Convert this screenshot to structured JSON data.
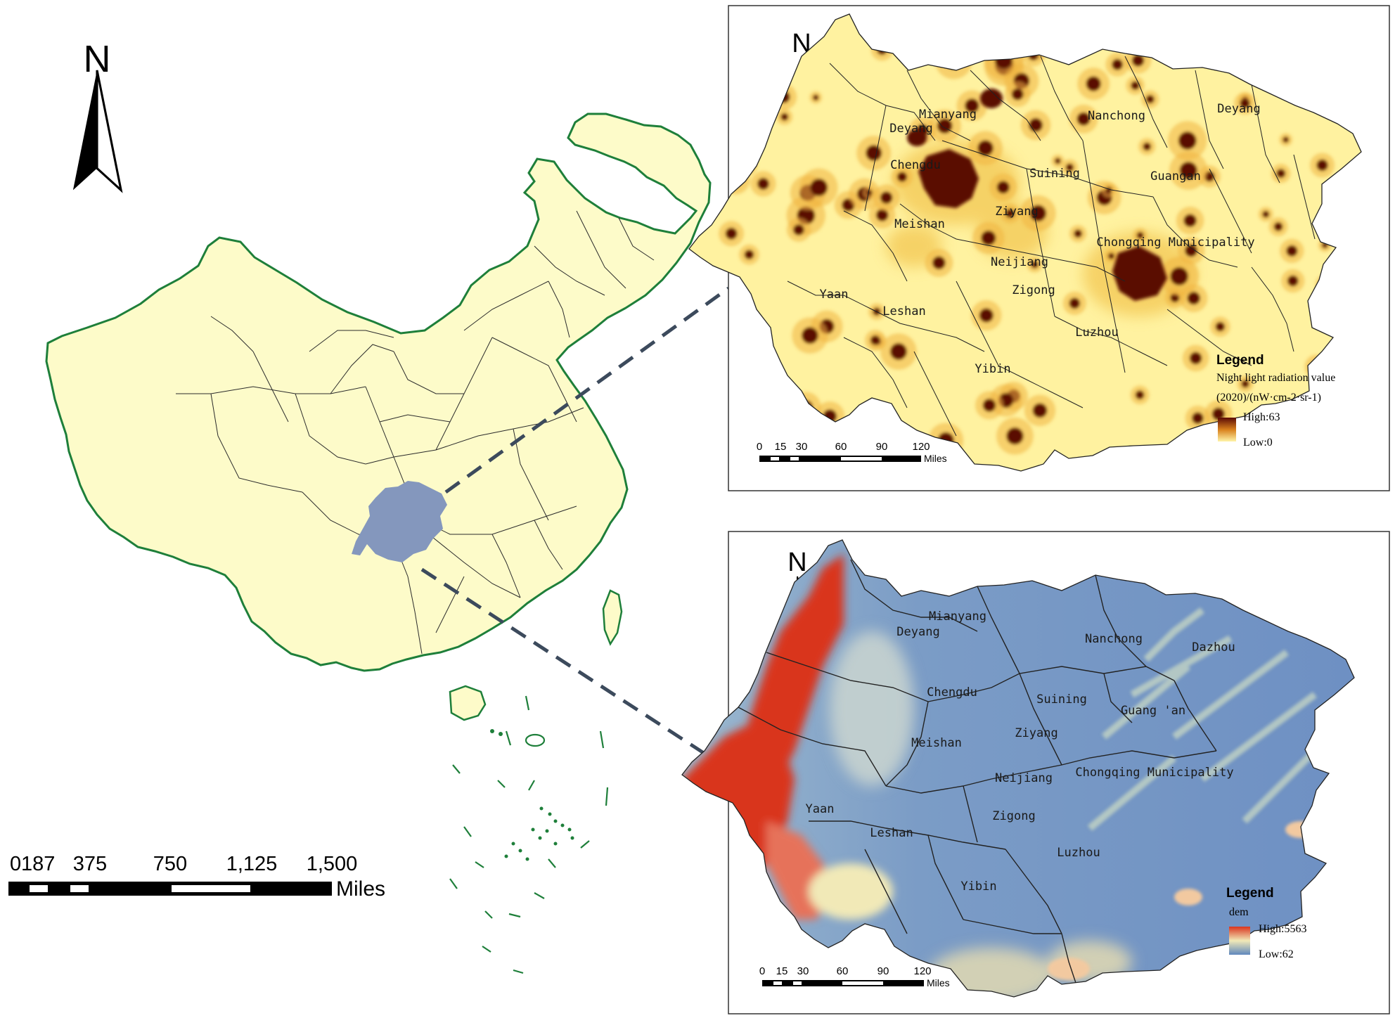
{
  "north_label": "N",
  "china_map": {
    "scale_ticks": [
      "0",
      "187",
      "375",
      "750",
      "1,125",
      "1,500"
    ],
    "scale_unit": "Miles"
  },
  "night_light_map": {
    "city_labels": [
      "Mianyang",
      "Nanchong",
      "Deyang",
      "Deyang",
      "Chengdu",
      "Suining",
      "Guangan",
      "Ziyang",
      "Meishan",
      "Chongqing Municipality",
      "Neijiang",
      "Yaan",
      "Zigong",
      "Leshan",
      "Luzhou",
      "Yibin"
    ],
    "legend_title": "Legend",
    "legend_subtitle_1": "Night light radiation value",
    "legend_subtitle_2": "(2020)/(nW·cm-2·sr-1)",
    "legend_high": "High:63",
    "legend_low": "Low:0",
    "scale_ticks": [
      "0",
      "15",
      "30",
      "60",
      "90",
      "120"
    ],
    "scale_unit": "Miles",
    "colors": {
      "low": "#fff4a8",
      "mid": "#f0b440",
      "high": "#5a0a05"
    }
  },
  "dem_map": {
    "city_labels": [
      "Mianyang",
      "Nanchong",
      "Dazhou",
      "Deyang",
      "Chengdu",
      "Suining",
      "Guang 'an",
      "Meishan",
      "Ziyang",
      "Chongqing Municipality",
      "Neijiang",
      "Yaan",
      "Zigong",
      "Leshan",
      "Luzhou",
      "Yibin"
    ],
    "legend_title": "Legend",
    "legend_subtitle": "dem",
    "legend_high": "High:5563",
    "legend_low": "Low:62",
    "scale_ticks": [
      "0",
      "15",
      "30",
      "60",
      "90",
      "120"
    ],
    "scale_unit": "Miles",
    "colors": {
      "low": "#5f88bd",
      "mid": "#f1e9b7",
      "high": "#d9341e"
    }
  },
  "china_colors": {
    "land": "#fdfbc9",
    "coast": "#1e7f3a",
    "study_area": "#8497bd"
  }
}
